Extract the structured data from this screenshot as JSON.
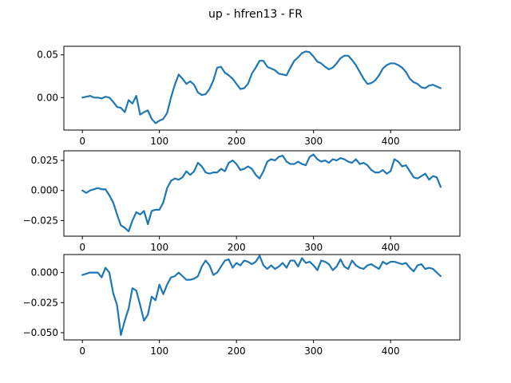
{
  "figure": {
    "title": "up - hfren13 - FR",
    "line_color": "#1f77b4"
  },
  "chart_data": [
    {
      "type": "line",
      "title": "",
      "xlabel": "",
      "ylabel": "",
      "xlim": [
        -24,
        490
      ],
      "ylim": [
        -0.038,
        0.06
      ],
      "xticks": [
        0,
        100,
        200,
        300,
        400
      ],
      "xtick_labels": [
        "0",
        "100",
        "200",
        "300",
        "400"
      ],
      "yticks": [
        0.0,
        0.05
      ],
      "ytick_labels": [
        "0.00",
        "0.05"
      ],
      "grid": false,
      "series": [
        {
          "x": [
            0,
            5,
            10,
            15,
            20,
            25,
            30,
            35,
            40,
            45,
            50,
            55,
            60,
            65,
            70,
            75,
            80,
            85,
            90,
            95,
            100,
            105,
            110,
            115,
            120,
            125,
            130,
            135,
            140,
            145,
            150,
            155,
            160,
            165,
            170,
            175,
            180,
            185,
            190,
            195,
            200,
            205,
            210,
            215,
            220,
            225,
            230,
            235,
            240,
            245,
            250,
            255,
            260,
            265,
            270,
            275,
            280,
            285,
            290,
            295,
            300,
            305,
            310,
            315,
            320,
            325,
            330,
            335,
            340,
            345,
            350,
            355,
            360,
            365,
            370,
            375,
            380,
            385,
            390,
            395,
            400,
            405,
            410,
            415,
            420,
            425,
            430,
            435,
            440,
            445,
            450,
            455,
            460,
            465
          ],
          "y": [
            0.0,
            0.001,
            0.002,
            0.0,
            0.0,
            -0.001,
            0.001,
            0.0,
            -0.005,
            -0.011,
            -0.012,
            -0.017,
            -0.003,
            -0.007,
            0.002,
            -0.02,
            -0.017,
            -0.015,
            -0.025,
            -0.03,
            -0.027,
            -0.025,
            -0.018,
            0.0,
            0.015,
            0.027,
            0.022,
            0.016,
            0.019,
            0.015,
            0.006,
            0.003,
            0.004,
            0.01,
            0.02,
            0.035,
            0.036,
            0.029,
            0.026,
            0.022,
            0.016,
            0.01,
            0.011,
            0.016,
            0.028,
            0.035,
            0.043,
            0.043,
            0.036,
            0.034,
            0.032,
            0.028,
            0.027,
            0.026,
            0.035,
            0.043,
            0.047,
            0.052,
            0.054,
            0.053,
            0.048,
            0.042,
            0.04,
            0.036,
            0.033,
            0.035,
            0.04,
            0.046,
            0.049,
            0.049,
            0.044,
            0.038,
            0.03,
            0.022,
            0.016,
            0.017,
            0.02,
            0.026,
            0.034,
            0.038,
            0.04,
            0.04,
            0.038,
            0.035,
            0.03,
            0.022,
            0.018,
            0.016,
            0.012,
            0.011,
            0.014,
            0.015,
            0.013,
            0.011
          ]
        }
      ]
    },
    {
      "type": "line",
      "title": "",
      "xlabel": "",
      "ylabel": "",
      "xlim": [
        -24,
        490
      ],
      "ylim": [
        -0.038,
        0.033
      ],
      "xticks": [
        0,
        100,
        200,
        300,
        400
      ],
      "xtick_labels": [
        "0",
        "100",
        "200",
        "300",
        "400"
      ],
      "yticks": [
        -0.025,
        0.0,
        0.025
      ],
      "ytick_labels": [
        "−0.025",
        "0.000",
        "0.025"
      ],
      "grid": false,
      "series": [
        {
          "x": [
            0,
            5,
            10,
            15,
            20,
            25,
            30,
            35,
            40,
            45,
            50,
            55,
            60,
            65,
            70,
            75,
            80,
            85,
            90,
            95,
            100,
            105,
            110,
            115,
            120,
            125,
            130,
            135,
            140,
            145,
            150,
            155,
            160,
            165,
            170,
            175,
            180,
            185,
            190,
            195,
            200,
            205,
            210,
            215,
            220,
            225,
            230,
            235,
            240,
            245,
            250,
            255,
            260,
            265,
            270,
            275,
            280,
            285,
            290,
            295,
            300,
            305,
            310,
            315,
            320,
            325,
            330,
            335,
            340,
            345,
            350,
            355,
            360,
            365,
            370,
            375,
            380,
            385,
            390,
            395,
            400,
            405,
            410,
            415,
            420,
            425,
            430,
            435,
            440,
            445,
            450,
            455,
            460,
            465
          ],
          "y": [
            0.0,
            -0.002,
            0.0,
            0.001,
            0.002,
            0.001,
            0.001,
            -0.004,
            -0.01,
            -0.02,
            -0.029,
            -0.031,
            -0.034,
            -0.025,
            -0.018,
            -0.02,
            -0.017,
            -0.028,
            -0.017,
            -0.016,
            -0.016,
            -0.01,
            0.002,
            0.008,
            0.01,
            0.009,
            0.011,
            0.016,
            0.013,
            0.016,
            0.023,
            0.02,
            0.015,
            0.014,
            0.015,
            0.015,
            0.018,
            0.016,
            0.023,
            0.025,
            0.022,
            0.017,
            0.018,
            0.02,
            0.018,
            0.013,
            0.01,
            0.016,
            0.024,
            0.026,
            0.025,
            0.028,
            0.029,
            0.024,
            0.022,
            0.022,
            0.024,
            0.022,
            0.021,
            0.028,
            0.03,
            0.026,
            0.024,
            0.025,
            0.023,
            0.026,
            0.025,
            0.027,
            0.026,
            0.024,
            0.023,
            0.026,
            0.022,
            0.023,
            0.021,
            0.017,
            0.015,
            0.015,
            0.017,
            0.014,
            0.016,
            0.026,
            0.024,
            0.02,
            0.021,
            0.016,
            0.011,
            0.01,
            0.012,
            0.014,
            0.009,
            0.012,
            0.011,
            0.003
          ]
        }
      ]
    },
    {
      "type": "line",
      "title": "",
      "xlabel": "",
      "ylabel": "",
      "xlim": [
        -24,
        490
      ],
      "ylim": [
        -0.056,
        0.015
      ],
      "xticks": [
        0,
        100,
        200,
        300,
        400
      ],
      "xtick_labels": [
        "0",
        "100",
        "200",
        "300",
        "400"
      ],
      "yticks": [
        -0.05,
        -0.025,
        0.0
      ],
      "ytick_labels": [
        "−0.050",
        "−0.025",
        "0.000"
      ],
      "grid": false,
      "series": [
        {
          "x": [
            0,
            5,
            10,
            15,
            20,
            25,
            30,
            35,
            40,
            45,
            50,
            55,
            60,
            65,
            70,
            75,
            80,
            85,
            90,
            95,
            100,
            105,
            110,
            115,
            120,
            125,
            130,
            135,
            140,
            145,
            150,
            155,
            160,
            165,
            170,
            175,
            180,
            185,
            190,
            195,
            200,
            205,
            210,
            215,
            220,
            225,
            230,
            235,
            240,
            245,
            250,
            255,
            260,
            265,
            270,
            275,
            280,
            285,
            290,
            295,
            300,
            305,
            310,
            315,
            320,
            325,
            330,
            335,
            340,
            345,
            350,
            355,
            360,
            365,
            370,
            375,
            380,
            385,
            390,
            395,
            400,
            405,
            410,
            415,
            420,
            425,
            430,
            435,
            440,
            445,
            450,
            455,
            460,
            465
          ],
          "y": [
            -0.002,
            -0.001,
            0.0,
            0.0,
            0.0,
            -0.004,
            0.004,
            0.0,
            -0.017,
            -0.027,
            -0.052,
            -0.04,
            -0.03,
            -0.013,
            -0.015,
            -0.027,
            -0.04,
            -0.035,
            -0.02,
            -0.023,
            -0.01,
            -0.018,
            -0.01,
            -0.004,
            -0.003,
            0.0,
            -0.003,
            -0.006,
            -0.006,
            -0.005,
            -0.003,
            0.005,
            0.01,
            0.006,
            -0.002,
            0.0,
            0.005,
            0.01,
            0.011,
            0.004,
            0.008,
            0.006,
            0.01,
            0.009,
            0.007,
            0.009,
            0.014,
            0.006,
            0.003,
            0.006,
            0.003,
            0.005,
            0.008,
            0.004,
            0.01,
            0.01,
            0.005,
            0.012,
            0.008,
            0.009,
            0.006,
            0.002,
            0.01,
            0.009,
            0.007,
            0.002,
            0.005,
            0.011,
            0.005,
            0.003,
            0.01,
            0.006,
            0.004,
            0.003,
            0.006,
            0.007,
            0.005,
            0.003,
            0.009,
            0.007,
            0.009,
            0.009,
            0.008,
            0.007,
            0.008,
            0.004,
            0.001,
            0.006,
            0.007,
            0.003,
            0.004,
            0.003,
            0.0,
            -0.003
          ]
        }
      ]
    }
  ]
}
